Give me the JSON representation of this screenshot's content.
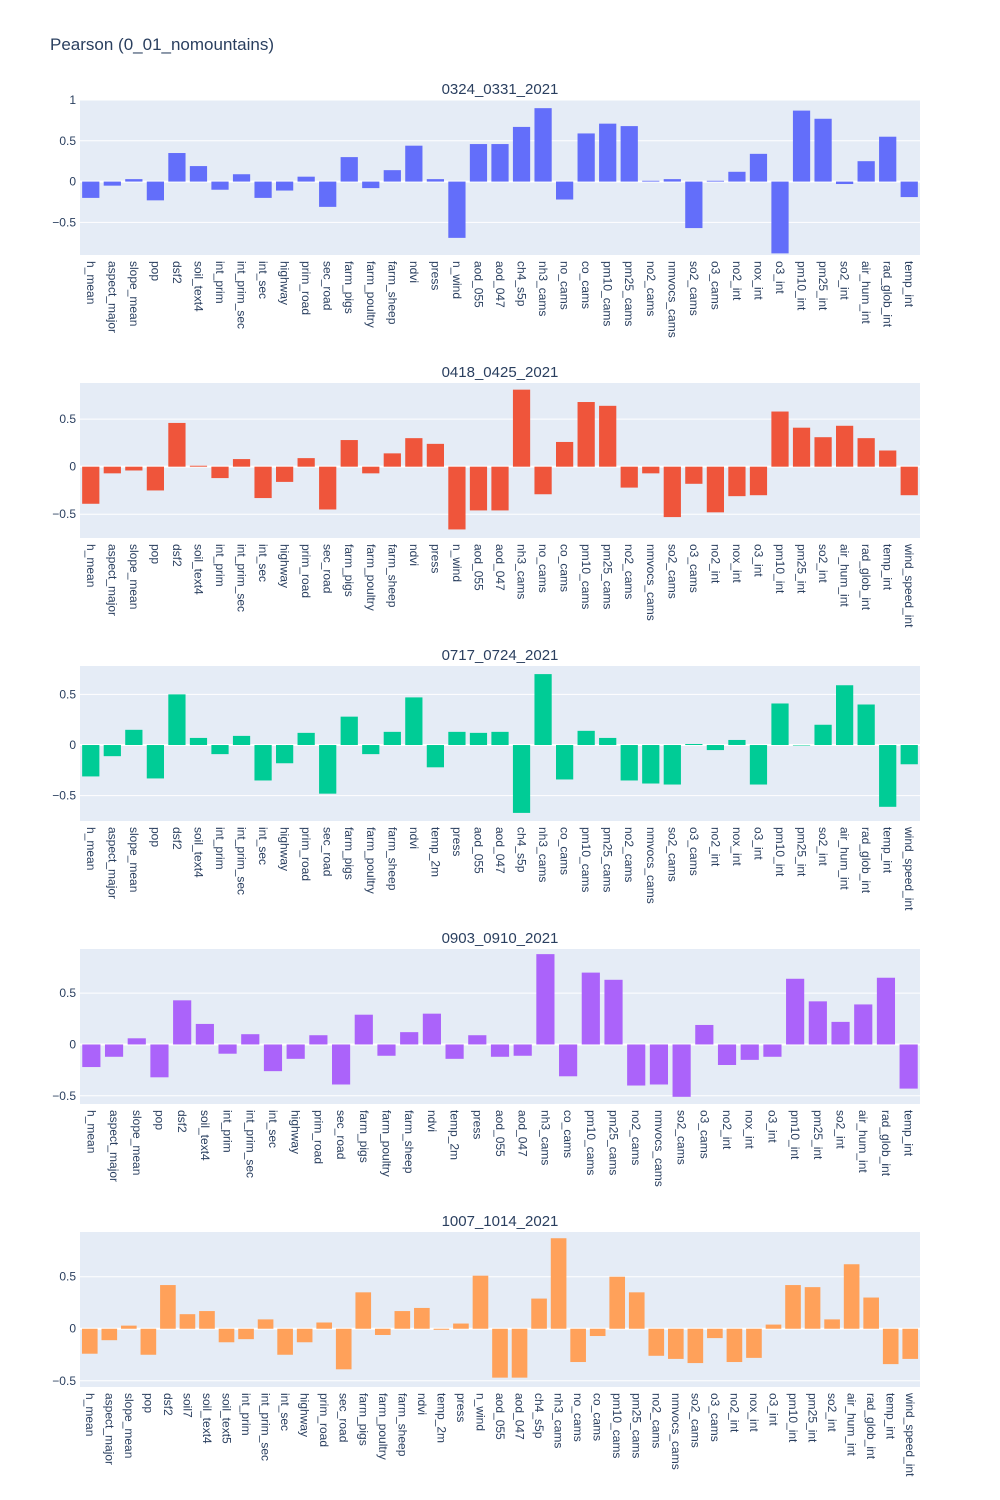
{
  "title": "Pearson (0_01_nomountains)",
  "chart_data": [
    {
      "type": "bar",
      "title": "0324_0331_2021",
      "color": "#636efa",
      "ylim": [
        -0.9,
        1.0
      ],
      "yticks": [
        -0.5,
        0,
        0.5,
        1
      ],
      "ytick_labels": [
        "−0.5",
        "0",
        "0.5",
        "1"
      ],
      "grid": true,
      "categories": [
        "h_mean",
        "aspect_major",
        "slope_mean",
        "pop",
        "dsf2",
        "soil_text4",
        "int_prim",
        "int_prim_sec",
        "int_sec",
        "highway",
        "prim_road",
        "sec_road",
        "farm_pigs",
        "farm_poultry",
        "farm_sheep",
        "ndvi",
        "press",
        "n_wind",
        "aod_055",
        "aod_047",
        "ch4_s5p",
        "nh3_cams",
        "no_cams",
        "co_cams",
        "pm10_cams",
        "pm25_cams",
        "no2_cams",
        "nmvocs_cams",
        "so2_cams",
        "o3_cams",
        "no2_int",
        "nox_int",
        "o3_int",
        "pm10_int",
        "pm25_int",
        "so2_int",
        "air_hum_int",
        "rad_glob_int",
        "temp_int"
      ],
      "values": [
        -0.2,
        -0.05,
        0.03,
        -0.23,
        0.35,
        0.19,
        -0.1,
        0.09,
        -0.2,
        -0.11,
        0.06,
        -0.31,
        0.3,
        -0.08,
        0.14,
        0.44,
        0.03,
        -0.69,
        0.46,
        0.46,
        0.67,
        0.9,
        -0.22,
        0.59,
        0.71,
        0.68,
        0.01,
        0.03,
        -0.57,
        0.01,
        0.12,
        0.34,
        -0.88,
        0.87,
        0.77,
        -0.03,
        0.25,
        0.55,
        -0.19
      ]
    },
    {
      "type": "bar",
      "title": "0418_0425_2021",
      "color": "#ef553b",
      "ylim": [
        -0.75,
        0.88
      ],
      "yticks": [
        -0.5,
        0,
        0.5
      ],
      "ytick_labels": [
        "−0.5",
        "0",
        "0.5"
      ],
      "grid": true,
      "categories": [
        "h_mean",
        "aspect_major",
        "slope_mean",
        "pop",
        "dsf2",
        "soil_text4",
        "int_prim",
        "int_prim_sec",
        "int_sec",
        "highway",
        "prim_road",
        "sec_road",
        "farm_pigs",
        "farm_poultry",
        "farm_sheep",
        "ndvi",
        "press",
        "n_wind",
        "aod_055",
        "aod_047",
        "nh3_cams",
        "no_cams",
        "co_cams",
        "pm10_cams",
        "pm25_cams",
        "no2_cams",
        "nmvocs_cams",
        "so2_cams",
        "o3_cams",
        "no2_int",
        "nox_int",
        "o3_int",
        "pm10_int",
        "pm25_int",
        "so2_int",
        "air_hum_int",
        "rad_glob_int",
        "temp_int",
        "wind_speed_int"
      ],
      "values": [
        -0.39,
        -0.07,
        -0.04,
        -0.25,
        0.46,
        0.01,
        -0.12,
        0.08,
        -0.33,
        -0.16,
        0.09,
        -0.45,
        0.28,
        -0.07,
        0.14,
        0.3,
        0.24,
        -0.66,
        -0.46,
        -0.46,
        0.81,
        -0.29,
        0.26,
        0.68,
        0.64,
        -0.22,
        -0.07,
        -0.53,
        -0.18,
        -0.48,
        -0.31,
        -0.3,
        0.58,
        0.41,
        0.31,
        0.43,
        0.3,
        0.17,
        -0.3
      ]
    },
    {
      "type": "bar",
      "title": "0717_0724_2021",
      "color": "#00cc96",
      "ylim": [
        -0.75,
        0.78
      ],
      "yticks": [
        -0.5,
        0,
        0.5
      ],
      "ytick_labels": [
        "−0.5",
        "0",
        "0.5"
      ],
      "grid": true,
      "categories": [
        "h_mean",
        "aspect_major",
        "slope_mean",
        "pop",
        "dsf2",
        "soil_text4",
        "int_prim",
        "int_prim_sec",
        "int_sec",
        "highway",
        "prim_road",
        "sec_road",
        "farm_pigs",
        "farm_poultry",
        "farm_sheep",
        "ndvi",
        "temp_2m",
        "press",
        "aod_055",
        "aod_047",
        "ch4_s5p",
        "nh3_cams",
        "co_cams",
        "pm10_cams",
        "pm25_cams",
        "no2_cams",
        "nmvocs_cams",
        "so2_cams",
        "o3_cams",
        "no2_int",
        "nox_int",
        "o3_int",
        "pm10_int",
        "pm25_int",
        "so2_int",
        "air_hum_int",
        "rad_glob_int",
        "temp_int",
        "wind_speed_int"
      ],
      "values": [
        -0.31,
        -0.11,
        0.15,
        -0.33,
        0.5,
        0.07,
        -0.09,
        0.09,
        -0.35,
        -0.18,
        0.12,
        -0.48,
        0.28,
        -0.09,
        0.13,
        0.47,
        -0.22,
        0.13,
        0.12,
        0.13,
        -0.67,
        0.7,
        -0.34,
        0.14,
        0.07,
        -0.35,
        -0.38,
        -0.39,
        0.01,
        -0.05,
        0.05,
        -0.39,
        0.41,
        0.0,
        0.2,
        0.59,
        0.4,
        -0.61,
        -0.19
      ]
    },
    {
      "type": "bar",
      "title": "0903_0910_2021",
      "color": "#ab63fa",
      "ylim": [
        -0.58,
        0.93
      ],
      "yticks": [
        -0.5,
        0,
        0.5
      ],
      "ytick_labels": [
        "−0.5",
        "0",
        "0.5"
      ],
      "grid": true,
      "categories": [
        "h_mean",
        "aspect_major",
        "slope_mean",
        "pop",
        "dsf2",
        "soil_text4",
        "int_prim",
        "int_prim_sec",
        "int_sec",
        "highway",
        "prim_road",
        "sec_road",
        "farm_pigs",
        "farm_poultry",
        "farm_sheep",
        "ndvi",
        "temp_2m",
        "press",
        "aod_055",
        "aod_047",
        "nh3_cams",
        "co_cams",
        "pm10_cams",
        "pm25_cams",
        "no2_cams",
        "nmvocs_cams",
        "so2_cams",
        "o3_cams",
        "no2_int",
        "nox_int",
        "o3_int",
        "pm10_int",
        "pm25_int",
        "so2_int",
        "air_hum_int",
        "rad_glob_int",
        "temp_int"
      ],
      "values": [
        -0.22,
        -0.12,
        0.06,
        -0.32,
        0.43,
        0.2,
        -0.09,
        0.1,
        -0.26,
        -0.14,
        0.09,
        -0.39,
        0.29,
        -0.11,
        0.12,
        0.3,
        -0.14,
        0.09,
        -0.12,
        -0.11,
        0.88,
        -0.31,
        0.7,
        0.63,
        -0.4,
        -0.39,
        -0.51,
        0.19,
        -0.2,
        -0.15,
        -0.12,
        0.64,
        0.42,
        0.22,
        0.39,
        0.65,
        -0.43
      ]
    },
    {
      "type": "bar",
      "title": "1007_1014_2021",
      "color": "#ffa15a",
      "ylim": [
        -0.56,
        0.93
      ],
      "yticks": [
        -0.5,
        0,
        0.5
      ],
      "ytick_labels": [
        "−0.5",
        "0",
        "0.5"
      ],
      "grid": true,
      "categories": [
        "h_mean",
        "aspect_major",
        "slope_mean",
        "pop",
        "dsf2",
        "soil7",
        "soil_text4",
        "soil_text5",
        "int_prim",
        "int_prim_sec",
        "int_sec",
        "highway",
        "prim_road",
        "sec_road",
        "farm_pigs",
        "farm_poultry",
        "farm_sheep",
        "ndvi",
        "temp_2m",
        "press",
        "n_wind",
        "aod_055",
        "aod_047",
        "ch4_s5p",
        "nh3_cams",
        "no_cams",
        "co_cams",
        "pm10_cams",
        "pm25_cams",
        "no2_cams",
        "nmvocs_cams",
        "so2_cams",
        "o3_cams",
        "no2_int",
        "nox_int",
        "o3_int",
        "pm10_int",
        "pm25_int",
        "so2_int",
        "air_hum_int",
        "rad_glob_int",
        "temp_int",
        "wind_speed_int"
      ],
      "values": [
        -0.24,
        -0.11,
        0.03,
        -0.25,
        0.42,
        0.14,
        0.17,
        -0.13,
        -0.1,
        0.09,
        -0.25,
        -0.13,
        0.06,
        -0.39,
        0.35,
        -0.06,
        0.17,
        0.2,
        -0.01,
        0.05,
        0.51,
        -0.47,
        -0.47,
        0.29,
        0.87,
        -0.32,
        -0.07,
        0.5,
        0.35,
        -0.26,
        -0.29,
        -0.33,
        -0.09,
        -0.32,
        -0.28,
        0.04,
        0.42,
        0.4,
        0.09,
        0.62,
        0.3,
        -0.34,
        -0.29
      ]
    }
  ]
}
